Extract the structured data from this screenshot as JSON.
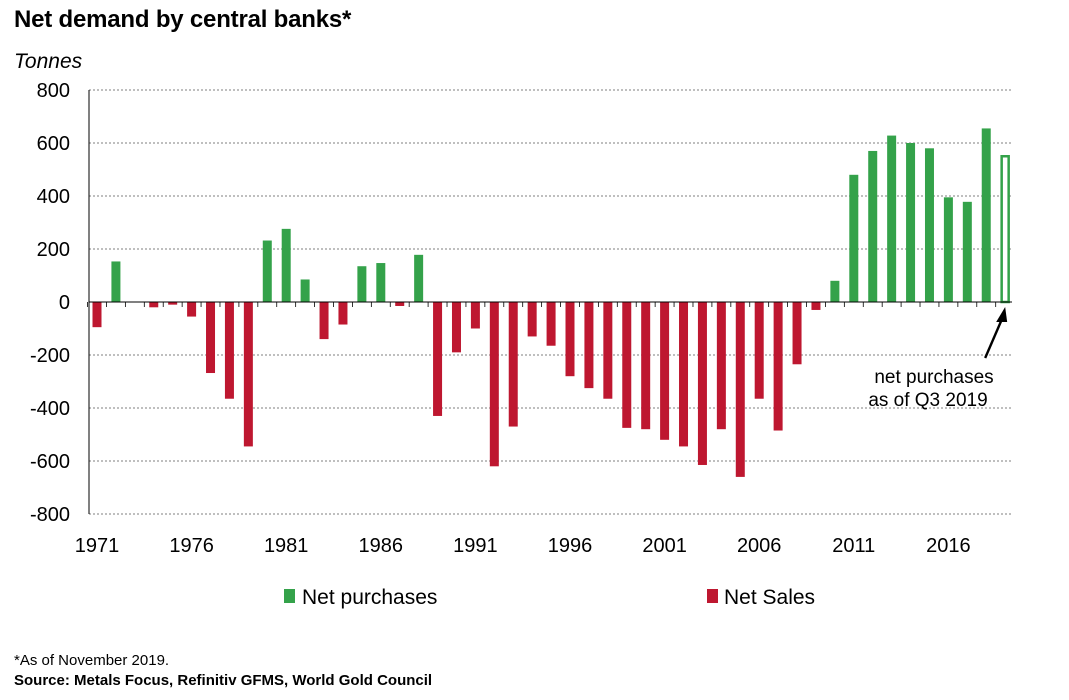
{
  "chart_data": {
    "type": "bar",
    "title": "Net demand by central banks*",
    "ylabel": "Tonnes",
    "ylim": [
      -800,
      800
    ],
    "yticks": [
      800,
      600,
      400,
      200,
      0,
      -200,
      -400,
      -600,
      -800
    ],
    "xtick_labels": [
      "1971",
      "1976",
      "1981",
      "1986",
      "1991",
      "1996",
      "2001",
      "2006",
      "2011",
      "2016"
    ],
    "years": [
      1971,
      1972,
      1973,
      1974,
      1975,
      1976,
      1977,
      1978,
      1979,
      1980,
      1981,
      1982,
      1983,
      1984,
      1985,
      1986,
      1987,
      1988,
      1989,
      1990,
      1991,
      1992,
      1993,
      1994,
      1995,
      1996,
      1997,
      1998,
      1999,
      2000,
      2001,
      2002,
      2003,
      2004,
      2005,
      2006,
      2007,
      2008,
      2009,
      2010,
      2011,
      2012,
      2013,
      2014,
      2015,
      2016,
      2017,
      2018,
      2019
    ],
    "values": [
      -95,
      153,
      0,
      -20,
      -10,
      -55,
      -268,
      -365,
      -545,
      232,
      276,
      85,
      -140,
      -85,
      135,
      147,
      -15,
      178,
      -430,
      -190,
      -100,
      -620,
      -470,
      -130,
      -165,
      -280,
      -325,
      -365,
      -475,
      -480,
      -520,
      -545,
      -615,
      -480,
      -660,
      -365,
      -485,
      -235,
      -30,
      80,
      480,
      570,
      628,
      600,
      580,
      395,
      378,
      655,
      550
    ],
    "outlined_years": [
      2019
    ],
    "colors": {
      "purchases": "#34a24a",
      "sales": "#be1730"
    },
    "legend": [
      {
        "label": "Net purchases",
        "color": "#34a24a"
      },
      {
        "label": "Net Sales",
        "color": "#be1730"
      }
    ],
    "annotation": {
      "line1": "net purchases",
      "line2": "as of Q3 2019"
    },
    "legend_position": "bottom",
    "grid": true
  },
  "footnote": "*As of November 2019.",
  "source": "Source: Metals Focus, Refinitiv GFMS, World Gold Council"
}
